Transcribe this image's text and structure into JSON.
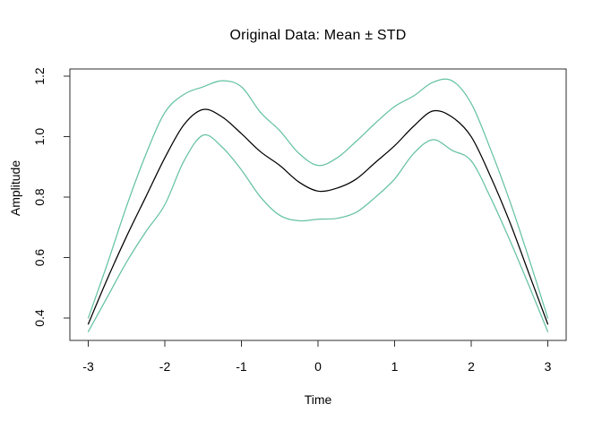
{
  "figure": {
    "title": "Original Data: Mean ± STD",
    "x_axis_label": "Time",
    "y_axis_label": "Amplitude"
  },
  "colors": {
    "mean_line": "#000000",
    "std_lines": "#66c2a2",
    "frame": "#2e2e2e",
    "tick_text": "#000000",
    "background": "#ffffff"
  },
  "chart_data": {
    "type": "line",
    "title": "Original Data: Mean ± STD",
    "xlabel": "Time",
    "ylabel": "Amplitude",
    "grid": false,
    "legend": "none",
    "xlim": [
      -3.24,
      3.24
    ],
    "ylim": [
      0.326,
      1.224
    ],
    "xtick_values": [
      -3,
      -2,
      -1,
      0,
      1,
      2,
      3
    ],
    "xtick_labels": [
      "-3",
      "-2",
      "-1",
      "0",
      "1",
      "2",
      "3"
    ],
    "ytick_values": [
      0.4,
      0.6,
      0.8,
      1.0,
      1.2
    ],
    "ytick_labels": [
      "0.4",
      "0.6",
      "0.8",
      "1.0",
      "1.2"
    ],
    "x": [
      -3,
      -2.75,
      -2.5,
      -2.25,
      -2,
      -1.75,
      -1.5,
      -1.25,
      -1,
      -0.75,
      -0.5,
      -0.25,
      0,
      0.25,
      0.5,
      0.75,
      1,
      1.25,
      1.5,
      1.75,
      2,
      2.25,
      2.5,
      2.75,
      3
    ],
    "series": [
      {
        "name": "mean",
        "color": "#000000",
        "values": [
          0.38,
          0.53,
          0.67,
          0.8,
          0.93,
          1.04,
          1.09,
          1.065,
          1.01,
          0.95,
          0.905,
          0.85,
          0.82,
          0.83,
          0.86,
          0.915,
          0.97,
          1.035,
          1.085,
          1.065,
          1.0,
          0.87,
          0.72,
          0.55,
          0.38
        ]
      },
      {
        "name": "mean_plus_std",
        "color": "#66c2a2",
        "values": [
          0.4,
          0.58,
          0.77,
          0.94,
          1.08,
          1.14,
          1.165,
          1.185,
          1.165,
          1.08,
          1.02,
          0.945,
          0.905,
          0.93,
          0.985,
          1.045,
          1.1,
          1.135,
          1.18,
          1.185,
          1.11,
          0.96,
          0.79,
          0.6,
          0.4
        ]
      },
      {
        "name": "mean_minus_std",
        "color": "#66c2a2",
        "values": [
          0.355,
          0.47,
          0.585,
          0.685,
          0.775,
          0.92,
          1.005,
          0.965,
          0.89,
          0.8,
          0.74,
          0.722,
          0.727,
          0.73,
          0.75,
          0.8,
          0.86,
          0.945,
          0.99,
          0.955,
          0.92,
          0.8,
          0.66,
          0.51,
          0.355
        ]
      }
    ]
  }
}
